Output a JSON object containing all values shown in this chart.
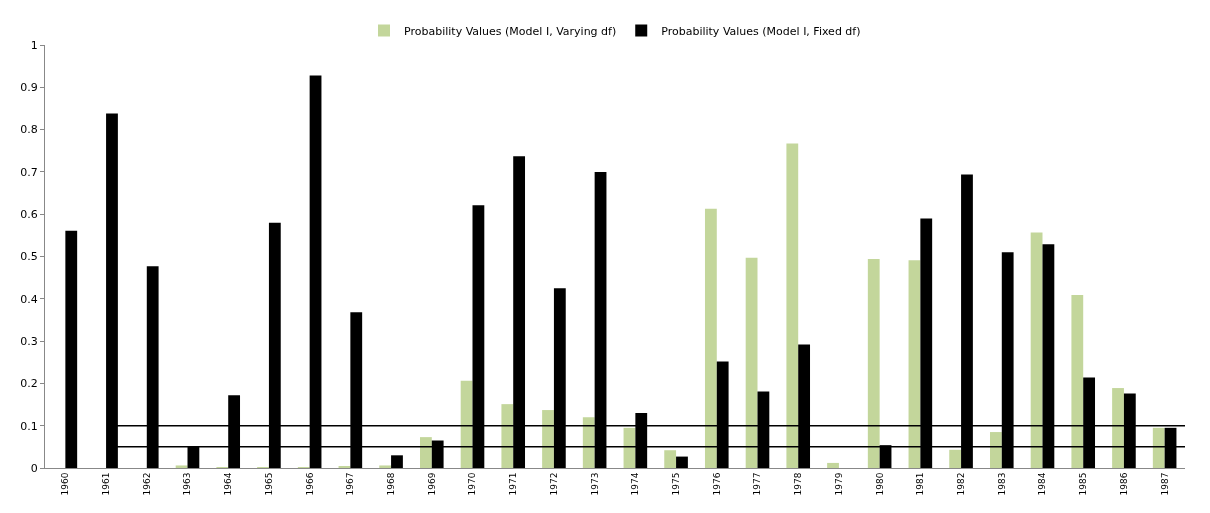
{
  "chart_data": {
    "type": "bar",
    "categories": [
      "1960",
      "1961",
      "1962",
      "1963",
      "1964",
      "1965",
      "1966",
      "1967",
      "1968",
      "1969",
      "1970",
      "1971",
      "1972",
      "1973",
      "1974",
      "1975",
      "1976",
      "1977",
      "1978",
      "1979",
      "1980",
      "1981",
      "1982",
      "1983",
      "1984",
      "1985",
      "1986",
      "1987"
    ],
    "series": [
      {
        "name": "Probability Values (Model I, Varying df)",
        "color": "#c3d69b",
        "values": [
          0,
          0,
          0,
          0.006,
          0.002,
          0.002,
          0.002,
          0.004,
          0.006,
          0.073,
          0.206,
          0.151,
          0.137,
          0.12,
          0.095,
          0.042,
          0.613,
          0.497,
          0.767,
          0.012,
          0.494,
          0.491,
          0.043,
          0.085,
          0.557,
          0.409,
          0.189,
          0.095
        ]
      },
      {
        "name": "Probability Values (Model I, Fixed df)",
        "color": "#000000",
        "values": [
          0.561,
          0.838,
          0.477,
          0.052,
          0.172,
          0.58,
          0.928,
          0.368,
          0.03,
          0.065,
          0.621,
          0.737,
          0.425,
          0.7,
          0.13,
          0.027,
          0.252,
          0.181,
          0.292,
          0,
          0.054,
          0.59,
          0.694,
          0.51,
          0.529,
          0.214,
          0.176,
          0.095
        ]
      }
    ],
    "ylim": [
      0,
      1
    ],
    "yticks": [
      0,
      0.1,
      0.2,
      0.3,
      0.4,
      0.5,
      0.6,
      0.7,
      0.8,
      0.9,
      1
    ],
    "ref_lines": [
      {
        "axis": "y",
        "value": 0.1,
        "color": "#000000"
      },
      {
        "axis": "y",
        "value": 0.05,
        "color": "#000000"
      }
    ],
    "grid": false,
    "legend": "top"
  }
}
